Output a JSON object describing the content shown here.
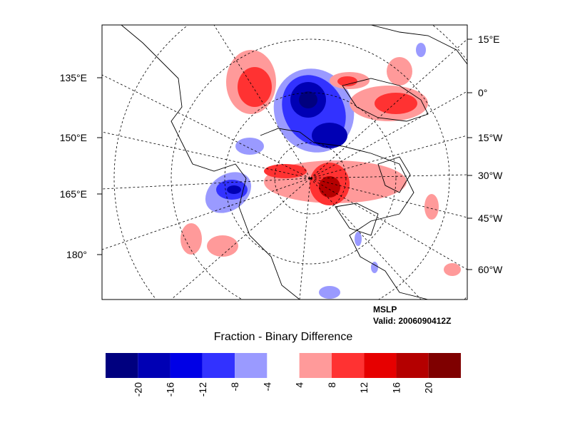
{
  "map": {
    "left_labels": [
      "135°E",
      "150°E",
      "165°E",
      "180°"
    ],
    "right_labels": [
      "15°E",
      "0°",
      "15°W",
      "30°W",
      "45°W",
      "60°W"
    ],
    "field": "MSLP",
    "valid": "Valid: 2006090412Z"
  },
  "colorbar": {
    "title": "Fraction - Binary Difference",
    "colors": [
      "#00007f",
      "#0000b4",
      "#0000e6",
      "#3232ff",
      "#9a9aff",
      "#ffffff",
      "#ff9a9a",
      "#ff3232",
      "#e60000",
      "#b40000",
      "#7f0000"
    ],
    "ticks": [
      -20,
      -16,
      -12,
      -8,
      -4,
      4,
      8,
      12,
      16,
      20
    ]
  }
}
